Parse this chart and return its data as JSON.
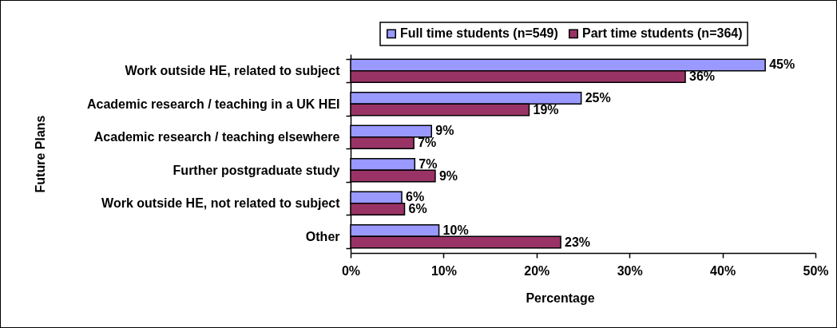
{
  "chart_data": {
    "type": "bar",
    "orientation": "horizontal",
    "xlabel": "Percentage",
    "ylabel": "Future Plans",
    "categories": [
      "Work outside HE, related to subject",
      "Academic research / teaching in a UK HEI",
      "Academic research / teaching elsewhere",
      "Further postgraduate study",
      "Work outside HE, not related to subject",
      "Other"
    ],
    "series": [
      {
        "name": "Full time students (n=549)",
        "color": "#9999ff",
        "values": [
          44.6,
          24.8,
          8.7,
          6.9,
          5.5,
          9.5
        ],
        "value_labels": [
          "45%",
          "25%",
          "9%",
          "7%",
          "6%",
          "10%"
        ]
      },
      {
        "name": "Part time students (n=364)",
        "color": "#993366",
        "values": [
          36.0,
          19.2,
          6.8,
          9.1,
          5.8,
          22.6
        ],
        "value_labels": [
          "36%",
          "19%",
          "7%",
          "9%",
          "6%",
          "23%"
        ]
      }
    ],
    "xlim": [
      0,
      50
    ],
    "xticks": [
      {
        "value": 0,
        "label": "0%"
      },
      {
        "value": 10,
        "label": "10%"
      },
      {
        "value": 20,
        "label": "20%"
      },
      {
        "value": 30,
        "label": "30%"
      },
      {
        "value": 40,
        "label": "40%"
      },
      {
        "value": 50,
        "label": "50%"
      }
    ],
    "grid": false,
    "legend": "top"
  }
}
